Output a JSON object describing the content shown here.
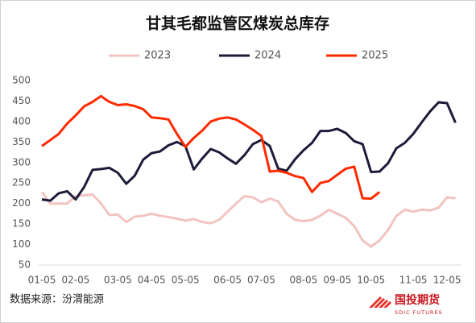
{
  "chart_data": {
    "type": "line",
    "title": "甘其毛都监管区煤炭总库存",
    "source": "数据来源：汾渭能源",
    "logo": {
      "name": "国投期货",
      "subtitle": "SDIC FUTURES"
    },
    "categories": [
      "01-05",
      null,
      null,
      null,
      "02-05",
      null,
      null,
      null,
      null,
      "03-05",
      null,
      null,
      null,
      "04-05",
      null,
      null,
      null,
      "05-05",
      null,
      null,
      null,
      null,
      "06-05",
      null,
      null,
      null,
      "07-05",
      null,
      null,
      null,
      null,
      "08-05",
      null,
      null,
      null,
      "09-05",
      null,
      null,
      null,
      "10-05",
      null,
      null,
      null,
      null,
      "11-05",
      null,
      null,
      null,
      "12-05",
      null
    ],
    "series": [
      {
        "name": "2023",
        "color": "#f2c4c1",
        "values": [
          228,
          200,
          200,
          200,
          218,
          220,
          222,
          200,
          172,
          173,
          155,
          168,
          170,
          175,
          170,
          167,
          163,
          158,
          162,
          155,
          152,
          160,
          180,
          200,
          218,
          215,
          203,
          212,
          205,
          175,
          160,
          157,
          160,
          170,
          185,
          175,
          165,
          145,
          110,
          95,
          110,
          135,
          170,
          185,
          180,
          185,
          183,
          190,
          215,
          213
        ]
      },
      {
        "name": "2024",
        "color": "#1c1c3a",
        "values": [
          210,
          207,
          225,
          230,
          210,
          240,
          282,
          284,
          287,
          275,
          248,
          268,
          307,
          323,
          327,
          342,
          350,
          340,
          283,
          310,
          333,
          325,
          310,
          297,
          318,
          345,
          355,
          340,
          285,
          280,
          308,
          330,
          348,
          377,
          377,
          382,
          372,
          352,
          345,
          277,
          278,
          298,
          335,
          348,
          370,
          398,
          425,
          447,
          445,
          397
        ]
      },
      {
        "name": "2025",
        "color": "#ff2a00",
        "values": [
          340,
          355,
          370,
          395,
          415,
          437,
          448,
          462,
          448,
          440,
          442,
          438,
          430,
          410,
          408,
          405,
          370,
          338,
          360,
          378,
          400,
          407,
          410,
          405,
          393,
          380,
          365,
          278,
          280,
          275,
          267,
          262,
          228,
          250,
          255,
          270,
          285,
          290,
          213,
          212,
          228,
          null,
          null,
          null,
          null,
          null,
          null,
          null,
          null,
          null
        ]
      }
    ],
    "ylim": [
      50,
      500
    ],
    "yticks": [
      50,
      100,
      150,
      200,
      250,
      300,
      350,
      400,
      450,
      500
    ],
    "legend": "top"
  }
}
